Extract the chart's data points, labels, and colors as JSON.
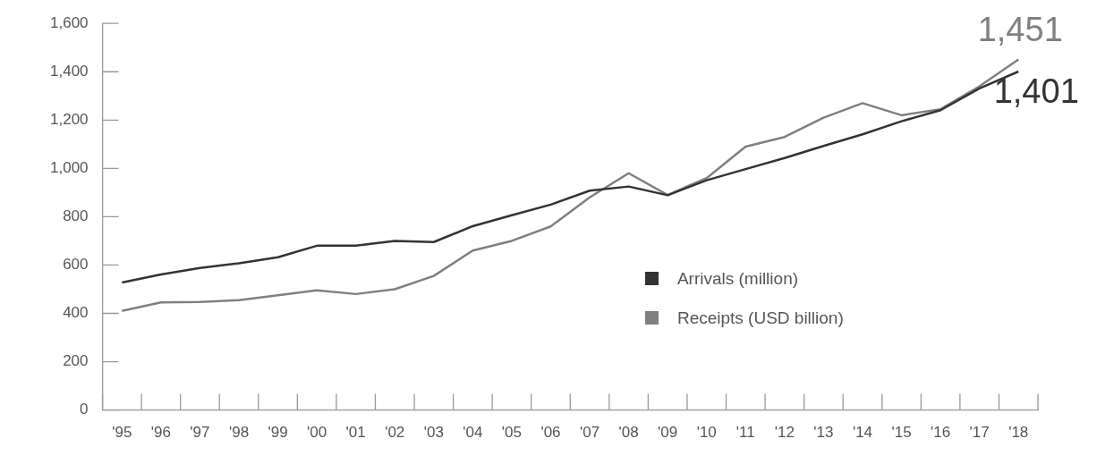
{
  "chart_data": {
    "type": "line",
    "categories": [
      "'95",
      "'96",
      "'97",
      "'98",
      "'99",
      "'00",
      "'01",
      "'02",
      "'03",
      "'04",
      "'05",
      "'06",
      "'07",
      "'08",
      "'09",
      "'10",
      "'11",
      "'12",
      "'13",
      "'14",
      "'15",
      "'16",
      "'17",
      "'18"
    ],
    "ylim": [
      0,
      1600
    ],
    "yticks": [
      0,
      {
        "value": 200,
        "label": "200"
      },
      {
        "value": 400,
        "label": "400"
      },
      {
        "value": 600,
        "label": "600"
      },
      {
        "value": 800,
        "label": "800"
      },
      {
        "value": 1000,
        "label": "1,000"
      },
      {
        "value": 1200,
        "label": "1,200"
      },
      {
        "value": 1400,
        "label": "1,400"
      },
      {
        "value": 1600,
        "label": "1,600"
      }
    ],
    "grid": false,
    "legend": "bottom right",
    "marker": "none",
    "line_style": "solid",
    "series": [
      {
        "name": "Arrivals (million)",
        "color": "#333333",
        "values": [
          528,
          561,
          588,
          607,
          632,
          680,
          680,
          700,
          695,
          761,
          806,
          850,
          908,
          925,
          889,
          951,
          997,
          1043,
          1093,
          1141,
          1195,
          1241,
          1331,
          1401
        ],
        "value_labels": [
          null,
          null,
          null,
          null,
          null,
          null,
          null,
          null,
          null,
          null,
          null,
          null,
          null,
          null,
          null,
          null,
          null,
          null,
          null,
          null,
          null,
          null,
          null,
          "1,401"
        ]
      },
      {
        "name": "Receipts (USD billion)",
        "color": "#808080",
        "values": [
          410,
          445,
          447,
          455,
          475,
          495,
          480,
          500,
          555,
          660,
          700,
          760,
          880,
          980,
          890,
          960,
          1090,
          1130,
          1210,
          1270,
          1220,
          1245,
          1340,
          1451
        ],
        "value_labels": [
          null,
          null,
          null,
          null,
          null,
          null,
          null,
          null,
          null,
          null,
          null,
          null,
          null,
          null,
          null,
          null,
          null,
          null,
          null,
          null,
          null,
          null,
          null,
          "1,451"
        ]
      }
    ]
  }
}
